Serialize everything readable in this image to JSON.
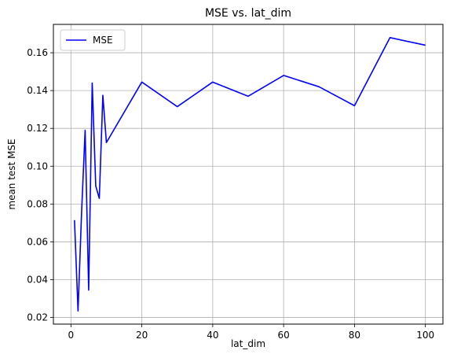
{
  "chart_data": {
    "type": "line",
    "title": "MSE vs. lat_dim",
    "xlabel": "lat_dim",
    "ylabel": "mean test MSE",
    "xlim": [
      -4.95,
      104.95
    ],
    "ylim": [
      0.0165,
      0.175
    ],
    "xticks": [
      0,
      20,
      40,
      60,
      80,
      100
    ],
    "yticks": [
      0.02,
      0.04,
      0.06,
      0.08,
      0.1,
      0.12,
      0.14,
      0.16
    ],
    "ytick_labels": [
      "0.02",
      "0.04",
      "0.06",
      "0.08",
      "0.10",
      "0.12",
      "0.14",
      "0.16"
    ],
    "grid": true,
    "legend": "top-left",
    "series": [
      {
        "name": "MSE",
        "color": "#0000ff",
        "x": [
          1,
          2,
          3,
          4,
          5,
          6,
          7,
          8,
          9,
          10,
          20,
          30,
          40,
          50,
          60,
          70,
          80,
          90,
          100
        ],
        "y": [
          0.0715,
          0.0235,
          0.0755,
          0.119,
          0.0345,
          0.144,
          0.0895,
          0.083,
          0.1375,
          0.1125,
          0.1445,
          0.1315,
          0.1445,
          0.137,
          0.148,
          0.142,
          0.132,
          0.168,
          0.164
        ]
      }
    ]
  }
}
